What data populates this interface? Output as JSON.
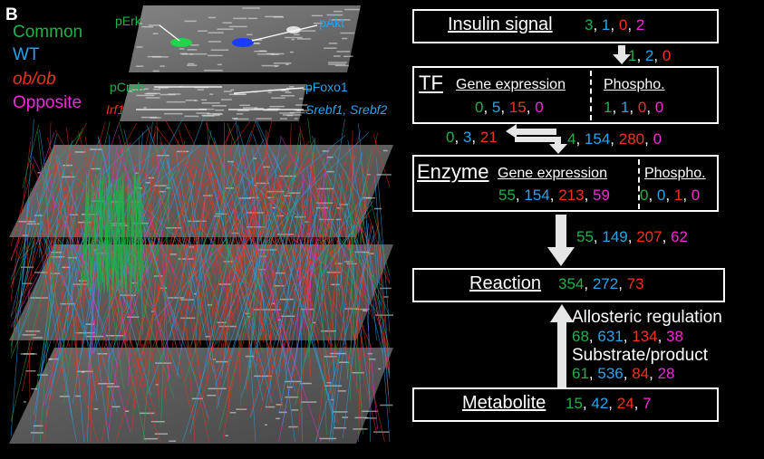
{
  "panel_label": "B",
  "legend": {
    "common": "Common",
    "wt": "WT",
    "obob": "ob/ob",
    "opposite": "Opposite"
  },
  "colors": {
    "common": "#21b04a",
    "wt": "#29a3ea",
    "obob": "#f0321c",
    "opposite": "#ee2bd4"
  },
  "network_labels": {
    "perk": "pErk",
    "pakt": "pAkt",
    "pcreb": "pCreb",
    "pfoxo1": "pFoxo1",
    "irf1": "Irf1",
    "srebf": "Srebf1, Srebf2"
  },
  "flow": {
    "insulin": {
      "label": "Insulin signal",
      "values": [
        "3",
        "1",
        "0",
        "2"
      ]
    },
    "insulin_to_tf": {
      "values": [
        "1",
        "2",
        "0"
      ]
    },
    "tf": {
      "label": "TF",
      "gene_expression_label": "Gene expression",
      "phospho_label": "Phospho.",
      "gene_values": [
        "0",
        "5",
        "15",
        "0"
      ],
      "phospho_values": [
        "1",
        "1",
        "0",
        "0"
      ]
    },
    "enzyme_to_tf": {
      "values": [
        "0",
        "3",
        "21"
      ]
    },
    "tf_to_enzyme": {
      "values": [
        "4",
        "154",
        "280",
        "0"
      ]
    },
    "enzyme": {
      "label": "Enzyme",
      "gene_expression_label": "Gene expression",
      "phospho_label": "Phospho.",
      "gene_values": [
        "55",
        "154",
        "213",
        "59"
      ],
      "phospho_values": [
        "0",
        "0",
        "1",
        "0"
      ]
    },
    "enzyme_to_reaction": {
      "values": [
        "55",
        "149",
        "207",
        "62"
      ]
    },
    "reaction": {
      "label": "Reaction",
      "values": [
        "354",
        "272",
        "73"
      ]
    },
    "allosteric": {
      "label": "Allosteric regulation",
      "values": [
        "68",
        "631",
        "134",
        "38"
      ]
    },
    "substrate": {
      "label": "Substrate/product",
      "values": [
        "61",
        "536",
        "84",
        "28"
      ]
    },
    "metabolite": {
      "label": "Metabolite",
      "values": [
        "15",
        "42",
        "24",
        "7"
      ]
    }
  }
}
